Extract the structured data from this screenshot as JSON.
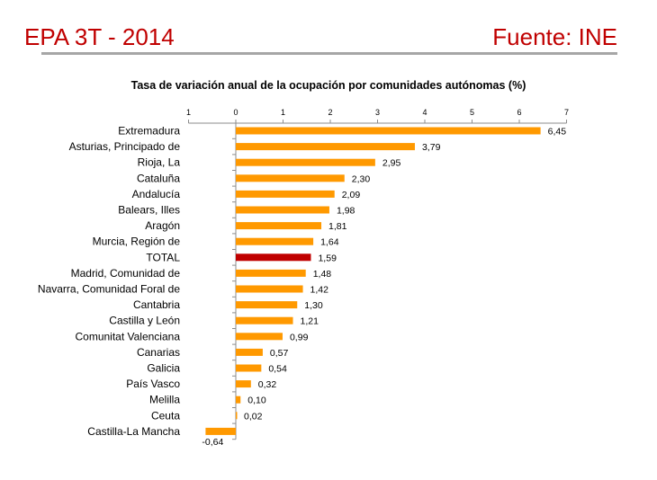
{
  "header": {
    "left_title": "EPA 3T - 2014",
    "right_title": "Fuente: INE"
  },
  "colors": {
    "header_text": "#c00000",
    "bar": "#ff9900",
    "bar_highlight": "#c00000",
    "rule": "#a6a6a6"
  },
  "chart_data": {
    "type": "bar",
    "orientation": "horizontal",
    "title": "Tasa de variación anual de la ocupación por comunidades autónomas (%)",
    "xlim": [
      -1,
      7
    ],
    "ticks": [
      -1,
      0,
      1,
      2,
      3,
      4,
      5,
      6,
      7
    ],
    "tick_labels": [
      "­1",
      "0",
      "1",
      "2",
      "3",
      "4",
      "5",
      "6",
      "7"
    ],
    "axis_position": "top",
    "grid": false,
    "legend": "none",
    "highlight_category": "TOTAL",
    "categories": [
      "Extremadura",
      "Asturias, Principado de",
      "Rioja, La",
      "Cataluña",
      "Andalucía",
      "Balears, Illes",
      "Aragón",
      "Murcia, Región de",
      "TOTAL",
      "Madrid, Comunidad de",
      "Navarra, Comunidad Foral de",
      "Cantabria",
      "Castilla y León",
      "Comunitat Valenciana",
      "Canarias",
      "Galicia",
      "País Vasco",
      "Melilla",
      "Ceuta",
      "Castilla-La Mancha"
    ],
    "values": [
      6.45,
      3.79,
      2.95,
      2.3,
      2.09,
      1.98,
      1.81,
      1.64,
      1.59,
      1.48,
      1.42,
      1.3,
      1.21,
      0.99,
      0.57,
      0.54,
      0.32,
      0.1,
      0.02,
      -0.64
    ],
    "value_labels": [
      "6,45",
      "3,79",
      "2,95",
      "2,30",
      "2,09",
      "1,98",
      "1,81",
      "1,64",
      "1,59",
      "1,48",
      "1,42",
      "1,30",
      "1,21",
      "0,99",
      "0,57",
      "0,54",
      "0,32",
      "0,10",
      "0,02",
      "-0,64"
    ]
  }
}
